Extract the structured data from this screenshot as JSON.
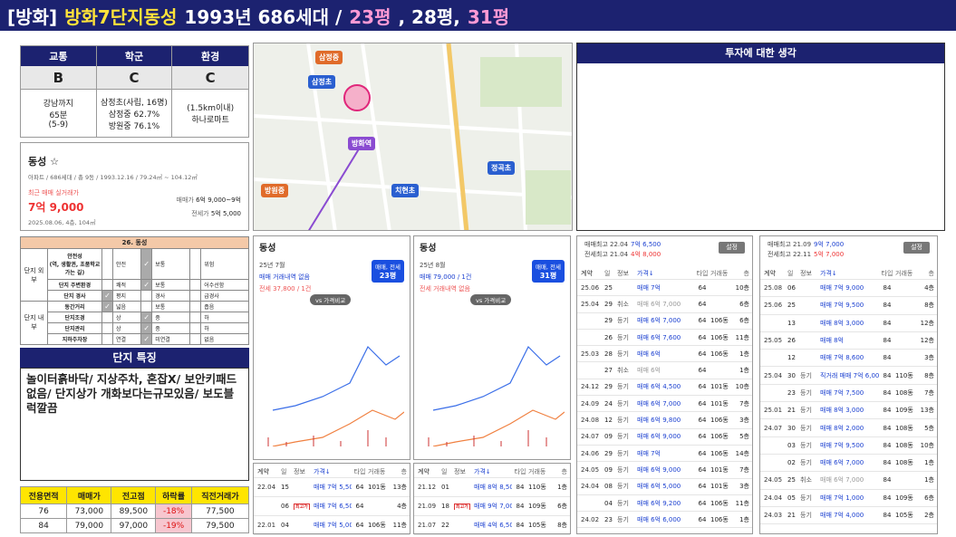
{
  "title": [
    {
      "text": "[방화]",
      "color": "#ffffff"
    },
    {
      "text": "방화7단지동성",
      "color": "#ffe23a"
    },
    {
      "text": "1993년 686세대 /",
      "color": "#ffffff"
    },
    {
      "text": "23평",
      "color": "#ff9ad5"
    },
    {
      "text": ", 28평,",
      "color": "#ffffff"
    },
    {
      "text": "31평",
      "color": "#ff9ad5"
    }
  ],
  "grades": {
    "headers": [
      "교통",
      "학군",
      "환경"
    ],
    "grades": [
      "B",
      "C",
      "C"
    ],
    "details": [
      "강남까지\n65분\n(5-9)",
      "삼정초(사립, 16명)\n삼정중 62.7%\n방원중 76.1%",
      "(1.5km이내)\n하나로마트"
    ]
  },
  "info": {
    "name": "동성 ☆",
    "meta": "아파트 / 686세대 / 총 9동 / 1993.12.16 / 79.24㎡ ~ 104.12㎡",
    "recent_label": "최근 매매 실거래가",
    "recent_price": "7억 9,000",
    "recent_detail": "2025.08.06, 4층, 104㎡",
    "sale_label": "매매가",
    "sale_range": "6억 9,000~9억",
    "jeonse_label": "전세가",
    "jeonse": "5억 5,000"
  },
  "checklist": {
    "title": "26. 동성",
    "groups": [
      {
        "name": "단지 외부",
        "rows": [
          {
            "item": "안전성\n(역, 생활권, 초품학교\n가는 길)",
            "options": [
              "안전",
              "보통",
              "위험"
            ],
            "checked": [
              false,
              true,
              false
            ]
          },
          {
            "item": "단지 주변환경",
            "options": [
              "쾌적",
              "보통",
              "어수선함"
            ],
            "checked": [
              false,
              true,
              false
            ]
          },
          {
            "item": "단지 경사",
            "options": [
              "평지",
              "경사",
              "급경사"
            ],
            "checked": [
              true,
              false,
              false
            ]
          }
        ]
      },
      {
        "name": "단지 내부",
        "rows": [
          {
            "item": "동간거리",
            "options": [
              "넓음",
              "보통",
              "좁음"
            ],
            "checked": [
              true,
              false,
              false
            ]
          },
          {
            "item": "단지조경",
            "options": [
              "상",
              "중",
              "하"
            ],
            "checked": [
              false,
              true,
              false
            ]
          },
          {
            "item": "단지관리",
            "options": [
              "상",
              "중",
              "하"
            ],
            "checked": [
              false,
              true,
              false
            ]
          },
          {
            "item": "지하주차장",
            "options": [
              "연결",
              "미연결",
              "없음"
            ],
            "checked": [
              false,
              true,
              false
            ]
          }
        ]
      }
    ]
  },
  "features": {
    "title": "단지 특징",
    "text": "놀이터흙바닥/ 지상주차, 혼잡X/ 보안키패드없음/ 단지상가 개화보다는규모있음/ 보도블럭깔끔"
  },
  "price_table": {
    "headers": [
      "전용면적",
      "매매가",
      "전고점",
      "하락률",
      "직전거래가"
    ],
    "rows": [
      [
        "76",
        "73,000",
        "89,500",
        "-18%",
        "77,500"
      ],
      [
        "84",
        "79,000",
        "97,000",
        "-19%",
        "79,500"
      ]
    ]
  },
  "map": {
    "labels": [
      "삼정중",
      "삼정초",
      "방화역",
      "방원중",
      "치현초",
      "정곡초"
    ]
  },
  "charts": [
    {
      "name": "동성",
      "month": "25년 7월",
      "line1": "매매 거래내역 없음",
      "line2": "전세 37,800 / 1건",
      "selector": "매매, 전세",
      "size": "23평",
      "compare": "vs 가격비교"
    },
    {
      "name": "동성",
      "month": "25년 8월",
      "line1": "매매 79,000 / 1건",
      "line2": "전세 거래내역 없음",
      "selector": "매매, 전세",
      "size": "31평",
      "compare": "vs 가격비교"
    }
  ],
  "trade_headers": [
    "계약",
    "일",
    "정보",
    "가격↓",
    "타입",
    "거래동",
    "층"
  ],
  "small_tables": [
    {
      "rows": [
        [
          "22.04",
          "15",
          "",
          "매매 7억 5,500",
          "64",
          "101동",
          "13층"
        ],
        [
          "",
          "06",
          "최고가",
          "매매 7억 6,500",
          "64",
          "",
          "4층"
        ],
        [
          "22.01",
          "04",
          "",
          "매매 7억 5,000",
          "64",
          "106동",
          "11층"
        ]
      ]
    },
    {
      "rows": [
        [
          "21.12",
          "01",
          "",
          "매매 8억 8,500",
          "84",
          "110동",
          "1층"
        ],
        [
          "21.09",
          "18",
          "최고가",
          "매매 9억 7,000",
          "84",
          "109동",
          "6층"
        ],
        [
          "21.07",
          "22",
          "",
          "매매 4억 6,500",
          "84",
          "105동",
          "8층"
        ]
      ]
    }
  ],
  "investment": {
    "title": "투자에 대한 생각"
  },
  "lists": [
    {
      "high1": "매매최고 22.04",
      "high1_price": "7억 6,500",
      "high2": "전세최고 21.04",
      "high2_price": "4억 8,000",
      "button": "설정",
      "rows": [
        [
          "25.06",
          "25",
          "",
          "매매 7억",
          "64",
          "",
          "10층"
        ],
        [
          "25.04",
          "29",
          "취소",
          "매매 6억 7,000",
          "64",
          "",
          "6층"
        ],
        [
          "",
          "29",
          "등기",
          "매매 6억 7,000",
          "64",
          "106동",
          "6층"
        ],
        [
          "",
          "26",
          "등기",
          "매매 6억 7,600",
          "64",
          "106동",
          "11층"
        ],
        [
          "25.03",
          "28",
          "등기",
          "매매 6억",
          "64",
          "106동",
          "1층"
        ],
        [
          "",
          "27",
          "취소",
          "매매 6억",
          "64",
          "",
          "1층"
        ],
        [
          "24.12",
          "29",
          "등기",
          "매매 6억 4,500",
          "64",
          "101동",
          "10층"
        ],
        [
          "24.09",
          "24",
          "등기",
          "매매 6억 7,000",
          "64",
          "101동",
          "7층"
        ],
        [
          "24.08",
          "12",
          "등기",
          "매매 6억 9,800",
          "64",
          "106동",
          "3층"
        ],
        [
          "24.07",
          "09",
          "등기",
          "매매 6억 9,000",
          "64",
          "106동",
          "5층"
        ],
        [
          "24.06",
          "29",
          "등기",
          "매매 7억",
          "64",
          "106동",
          "14층"
        ],
        [
          "24.05",
          "09",
          "등기",
          "매매 6억 9,000",
          "64",
          "101동",
          "7층"
        ],
        [
          "24.04",
          "08",
          "등기",
          "매매 6억 5,000",
          "64",
          "101동",
          "3층"
        ],
        [
          "",
          "04",
          "등기",
          "매매 6억 9,200",
          "64",
          "106동",
          "11층"
        ],
        [
          "24.02",
          "23",
          "등기",
          "매매 6억 6,000",
          "64",
          "106동",
          "1층"
        ]
      ]
    },
    {
      "high1": "매매최고 21.09",
      "high1_price": "9억 7,000",
      "high2": "전세최고 22.11",
      "high2_price": "5억 7,000",
      "button": "설정",
      "rows": [
        [
          "25.08",
          "06",
          "",
          "매매 7억 9,000",
          "84",
          "",
          "4층"
        ],
        [
          "25.06",
          "25",
          "",
          "매매 7억 9,500",
          "84",
          "",
          "8층"
        ],
        [
          "",
          "13",
          "",
          "매매 8억 3,000",
          "84",
          "",
          "12층"
        ],
        [
          "25.05",
          "26",
          "",
          "매매 8억",
          "84",
          "",
          "12층"
        ],
        [
          "",
          "12",
          "",
          "매매 7억 8,600",
          "84",
          "",
          "3층"
        ],
        [
          "25.04",
          "30",
          "등기",
          "직거래 매매 7억 6,000",
          "84",
          "110동",
          "8층"
        ],
        [
          "",
          "23",
          "등기",
          "매매 7억 7,500",
          "84",
          "108동",
          "7층"
        ],
        [
          "25.01",
          "21",
          "등기",
          "매매 8억 3,000",
          "84",
          "109동",
          "13층"
        ],
        [
          "24.07",
          "30",
          "등기",
          "매매 8억 2,000",
          "84",
          "108동",
          "5층"
        ],
        [
          "",
          "03",
          "등기",
          "매매 7억 9,500",
          "84",
          "108동",
          "10층"
        ],
        [
          "",
          "02",
          "등기",
          "매매 6억 7,000",
          "84",
          "108동",
          "1층"
        ],
        [
          "24.05",
          "25",
          "취소",
          "매매 6억 7,000",
          "84",
          "",
          "1층"
        ],
        [
          "24.04",
          "05",
          "등기",
          "매매 7억 1,000",
          "84",
          "109동",
          "6층"
        ],
        [
          "24.03",
          "21",
          "등기",
          "매매 7억 4,000",
          "84",
          "105동",
          "2층"
        ]
      ]
    }
  ]
}
